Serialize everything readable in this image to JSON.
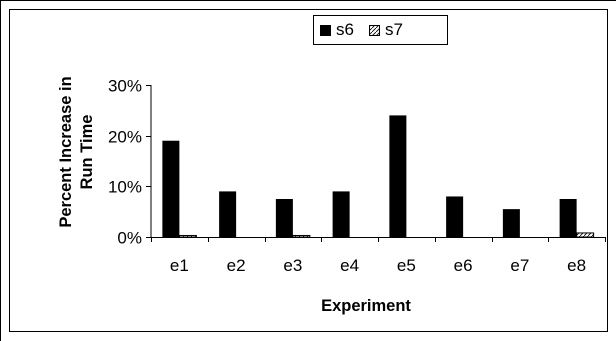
{
  "chart_data": {
    "type": "bar",
    "categories": [
      "e1",
      "e2",
      "e3",
      "e4",
      "e5",
      "e6",
      "e7",
      "e8"
    ],
    "series": [
      {
        "name": "s6",
        "values": [
          0.19,
          0.09,
          0.075,
          0.09,
          0.24,
          0.08,
          0.055,
          0.075
        ],
        "fill": "#000000"
      },
      {
        "name": "s7",
        "values": [
          0.003,
          0.0,
          0.003,
          0.0,
          0.0,
          0.0,
          0.0,
          0.008
        ],
        "fill": "hatched"
      }
    ],
    "xlabel": "Experiment",
    "ylabel_lines": [
      "Percent Increase in",
      "Run Time"
    ],
    "ylim": [
      0,
      0.3
    ],
    "yticks": [
      0,
      0.1,
      0.2,
      0.3
    ],
    "ytick_labels": [
      "0%",
      "10%",
      "20%",
      "30%"
    ],
    "grid": false,
    "legend_position": "top-center"
  }
}
